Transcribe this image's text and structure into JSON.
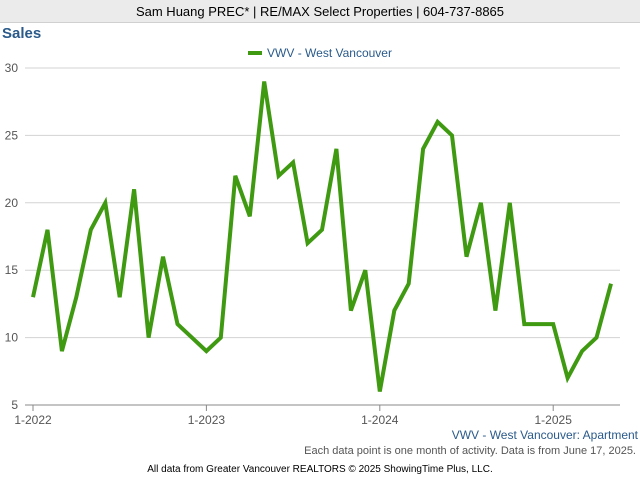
{
  "header": {
    "text": "Sam Huang PREC* | RE/MAX Select Properties | 604-737-8865"
  },
  "chart_data": {
    "type": "line",
    "title": "Sales",
    "xlabel": "",
    "ylabel": "",
    "x_ticks": [
      "1-2022",
      "1-2023",
      "1-2024",
      "1-2025"
    ],
    "y_ticks": [
      5,
      10,
      15,
      20,
      25,
      30
    ],
    "ylim": [
      5,
      30
    ],
    "grid": true,
    "legend_position": "top-center",
    "x": [
      "2022-01",
      "2022-02",
      "2022-03",
      "2022-04",
      "2022-05",
      "2022-06",
      "2022-07",
      "2022-08",
      "2022-09",
      "2022-10",
      "2022-11",
      "2022-12",
      "2023-01",
      "2023-02",
      "2023-03",
      "2023-04",
      "2023-05",
      "2023-06",
      "2023-07",
      "2023-08",
      "2023-09",
      "2023-10",
      "2023-11",
      "2023-12",
      "2024-01",
      "2024-02",
      "2024-03",
      "2024-04",
      "2024-05",
      "2024-06",
      "2024-07",
      "2024-08",
      "2024-09",
      "2024-10",
      "2024-11",
      "2024-12",
      "2025-01",
      "2025-02",
      "2025-03",
      "2025-04",
      "2025-05"
    ],
    "series": [
      {
        "name": "VWV - West Vancouver",
        "color": "#3f9a12",
        "values": [
          13,
          18,
          9,
          13,
          18,
          20,
          13,
          21,
          10,
          16,
          11,
          10,
          9,
          10,
          22,
          19,
          29,
          22,
          23,
          17,
          18,
          24,
          12,
          15,
          6,
          12,
          14,
          24,
          26,
          25,
          16,
          20,
          12,
          20,
          11,
          11,
          11,
          7,
          9,
          10,
          14
        ]
      }
    ]
  },
  "footer": {
    "series_label": "VWV - West Vancouver: Apartment",
    "note": "Each data point is one month of activity. Data is from June 17, 2025.",
    "credit": "All data from Greater Vancouver REALTORS © 2025 ShowingTime Plus, LLC."
  }
}
